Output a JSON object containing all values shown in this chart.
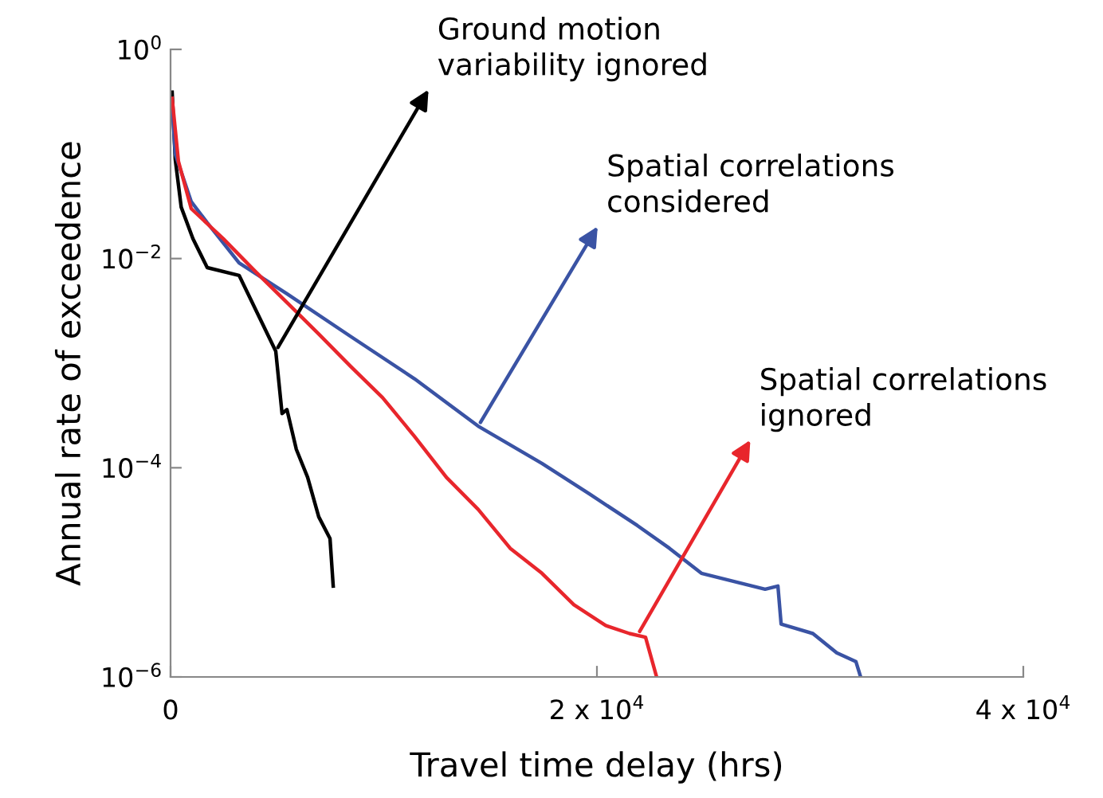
{
  "chart_data": {
    "type": "line",
    "xlabel": "Travel time delay (hrs)",
    "ylabel": "Annual rate of exceedence",
    "log": "y",
    "xlim": [
      0,
      40000
    ],
    "ylim": [
      1e-06,
      1
    ],
    "xticks": [
      0,
      {
        "value": 20000,
        "label": "2 x 10$^{4}$"
      },
      {
        "value": 40000,
        "label": "4 x 10$^{4}$"
      }
    ],
    "yticks": [
      {
        "value": 1e-06,
        "label": "10$^{−6}$"
      },
      {
        "value": 0.0001,
        "label": "10$^{−4}$"
      },
      {
        "value": 0.01,
        "label": "10$^{−2}$"
      },
      {
        "value": 1,
        "label": "10$^{0}$"
      }
    ],
    "grid": false,
    "marker": "none",
    "line_style": "solid",
    "series": [
      {
        "color": "#000000",
        "x": [
          75,
          220,
          500,
          1050,
          1720,
          3215,
          4935,
          5230,
          5460,
          5900,
          6430,
          6950,
          7480,
          7630
        ],
        "values": [
          0.39,
          0.089,
          0.031,
          0.0155,
          0.0082,
          0.0069,
          0.0013,
          0.00033,
          0.00036,
          0.00015,
          8.1e-05,
          3.4e-05,
          2.1e-05,
          7.4e-06
        ]
      },
      {
        "color": "#3a53a4",
        "x": [
          75,
          220,
          970,
          1720,
          3215,
          5460,
          8450,
          11440,
          14430,
          17420,
          19660,
          21900,
          23400,
          24900,
          27890,
          28490,
          28640,
          30130,
          31250,
          32150,
          32370
        ],
        "values": [
          0.3,
          0.1,
          0.035,
          0.022,
          0.0091,
          0.0046,
          0.0018,
          0.00071,
          0.00025,
          0.00011,
          5.6e-05,
          2.8e-05,
          1.7e-05,
          9.8e-06,
          6.9e-06,
          7.4e-06,
          3.2e-06,
          2.6e-06,
          1.7e-06,
          1.4e-06,
          1e-06
        ]
      },
      {
        "color": "#e8262c",
        "x": [
          75,
          370,
          970,
          2470,
          3960,
          5460,
          6950,
          8450,
          9940,
          11440,
          12940,
          14430,
          15930,
          17420,
          18920,
          20410,
          21530,
          22280,
          22800
        ],
        "values": [
          0.34,
          0.085,
          0.03,
          0.0155,
          0.0076,
          0.0038,
          0.0019,
          0.00093,
          0.00047,
          0.0002,
          8.1e-05,
          4e-05,
          1.7e-05,
          9.8e-06,
          4.9e-06,
          3.1e-06,
          2.6e-06,
          2.4e-06,
          1e-06
        ]
      }
    ],
    "annotations": [
      {
        "text": "Ground motion\nvariability ignored",
        "x": 4935,
        "y": 0.0013
      },
      {
        "text": "Spatial correlations\nconsidered",
        "x": 14430,
        "y": 0.00025
      },
      {
        "text": "Spatial correlations\nignored",
        "x": 21900,
        "y": 2.5e-06
      }
    ]
  }
}
